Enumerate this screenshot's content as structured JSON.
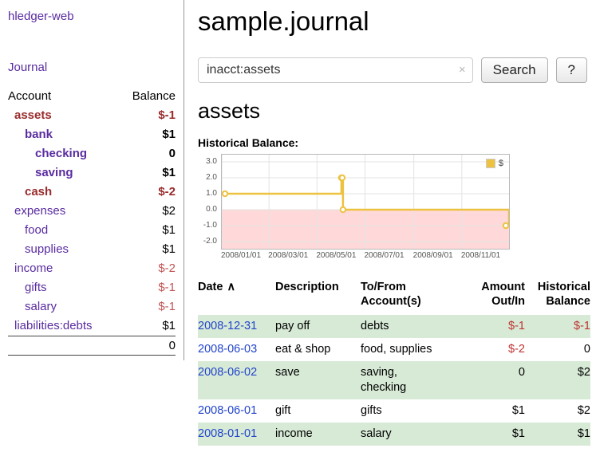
{
  "colors": {
    "link_purple": "#5a2ca0",
    "link_blue": "#2244cc",
    "negative_bold": "#992b2b",
    "negative_soft": "#c05555",
    "negative_table": "#c03333",
    "row_green": "#d7ead6",
    "chart_line": "#edc240",
    "chart_negative_fill": "#ffd9d9"
  },
  "sidebar": {
    "app_title": "hledger-web",
    "journal_link": "Journal",
    "account_header": "Account",
    "balance_header": "Balance",
    "accounts": [
      {
        "name": "assets",
        "balance": "$-1",
        "indent": 0,
        "bold": true,
        "negative": true
      },
      {
        "name": "bank",
        "balance": "$1",
        "indent": 1,
        "bold": true,
        "negative": false
      },
      {
        "name": "checking",
        "balance": "0",
        "indent": 2,
        "bold": true,
        "negative": false
      },
      {
        "name": "saving",
        "balance": "$1",
        "indent": 2,
        "bold": true,
        "negative": false
      },
      {
        "name": "cash",
        "balance": "$-2",
        "indent": 1,
        "bold": true,
        "negative": true
      },
      {
        "name": "expenses",
        "balance": "$2",
        "indent": 0,
        "bold": false,
        "negative": false
      },
      {
        "name": "food",
        "balance": "$1",
        "indent": 1,
        "bold": false,
        "negative": false
      },
      {
        "name": "supplies",
        "balance": "$1",
        "indent": 1,
        "bold": false,
        "negative": false
      },
      {
        "name": "income",
        "balance": "$-2",
        "indent": 0,
        "bold": false,
        "negative": true
      },
      {
        "name": "gifts",
        "balance": "$-1",
        "indent": 1,
        "bold": false,
        "negative": true
      },
      {
        "name": "salary",
        "balance": "$-1",
        "indent": 1,
        "bold": false,
        "negative": true
      },
      {
        "name": "liabilities:debts",
        "balance": "$1",
        "indent": 0,
        "bold": false,
        "negative": false
      }
    ],
    "total": "0"
  },
  "main": {
    "title": "sample.journal",
    "search": {
      "value": "inacct:assets",
      "clear_icon": "×",
      "search_button": "Search",
      "help_button": "?"
    },
    "account_heading": "assets",
    "chart_heading": "Historical Balance:",
    "register": {
      "headers": {
        "date": "Date",
        "sort_indicator": "∧",
        "description": "Description",
        "accounts_line1": "To/From",
        "accounts_line2": "Account(s)",
        "amount_line1": "Amount",
        "amount_line2": "Out/In",
        "balance_line1": "Historical",
        "balance_line2": "Balance"
      },
      "rows": [
        {
          "date": "2008-12-31",
          "description": "pay off",
          "accounts": "debts",
          "accounts_two_lines": false,
          "amount": "$-1",
          "amount_negative": true,
          "balance": "$-1",
          "balance_negative": true
        },
        {
          "date": "2008-06-03",
          "description": "eat & shop",
          "accounts": "food, supplies",
          "accounts_two_lines": false,
          "amount": "$-2",
          "amount_negative": true,
          "balance": "0",
          "balance_negative": false
        },
        {
          "date": "2008-06-02",
          "description": "save",
          "accounts": "saving, checking",
          "accounts_two_lines": true,
          "amount": "0",
          "amount_negative": false,
          "balance": "$2",
          "balance_negative": false
        },
        {
          "date": "2008-06-01",
          "description": "gift",
          "accounts": "gifts",
          "accounts_two_lines": false,
          "amount": "$1",
          "amount_negative": false,
          "balance": "$2",
          "balance_negative": false
        },
        {
          "date": "2008-01-01",
          "description": "income",
          "accounts": "salary",
          "accounts_two_lines": false,
          "amount": "$1",
          "amount_negative": false,
          "balance": "$1",
          "balance_negative": false
        }
      ]
    }
  },
  "chart_data": {
    "type": "line",
    "title": "Historical Balance",
    "step": true,
    "series": [
      {
        "name": "$",
        "points": [
          [
            "2008-01-01",
            1
          ],
          [
            "2008-06-01",
            2
          ],
          [
            "2008-06-02",
            2
          ],
          [
            "2008-06-03",
            0
          ],
          [
            "2008-12-31",
            -1
          ]
        ]
      }
    ],
    "ylim": [
      -2,
      3
    ],
    "xlim": [
      "2008-01-01",
      "2008-12-31"
    ],
    "y_ticks": [
      "3.0",
      "2.0",
      "1.0",
      "0.0",
      "-1.0",
      "-2.0"
    ],
    "x_ticks": [
      "2008/01/01",
      "2008/03/01",
      "2008/05/01",
      "2008/07/01",
      "2008/09/01",
      "2008/11/01"
    ],
    "legend": {
      "label": "$",
      "position": "top-right"
    },
    "line_color": "#edc240",
    "negative_region_fill": "#ffd9d9",
    "grid_color": "#e3e3e3"
  }
}
